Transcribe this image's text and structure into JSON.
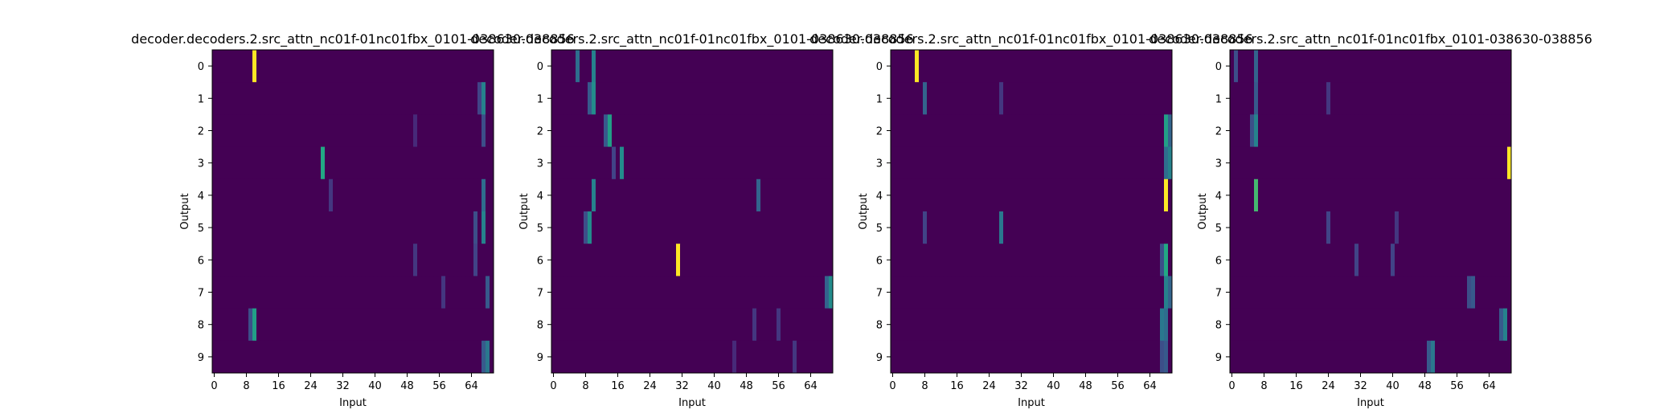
{
  "figure": {
    "background": "#ffffff",
    "colormap": "viridis"
  },
  "chart_data": [
    {
      "type": "heatmap",
      "title": "decoder.decoders.2.src_attn_nc01f-01nc01fbx_0101-038630-038856",
      "xlabel": "Input",
      "ylabel": "Output",
      "x_ticks": [
        "0",
        "8",
        "16",
        "24",
        "32",
        "40",
        "48",
        "56",
        "64"
      ],
      "y_ticks": [
        "0",
        "1",
        "2",
        "3",
        "4",
        "5",
        "6",
        "7",
        "8",
        "9"
      ],
      "n_cols": 70,
      "n_rows": 10,
      "peaks": [
        {
          "row": 0,
          "col": 10,
          "value": 1.0
        },
        {
          "row": 1,
          "col": 67,
          "value": 0.55
        },
        {
          "row": 1,
          "col": 66,
          "value": 0.25
        },
        {
          "row": 2,
          "col": 67,
          "value": 0.3
        },
        {
          "row": 2,
          "col": 50,
          "value": 0.15
        },
        {
          "row": 3,
          "col": 27,
          "value": 0.75
        },
        {
          "row": 4,
          "col": 67,
          "value": 0.45
        },
        {
          "row": 4,
          "col": 29,
          "value": 0.2
        },
        {
          "row": 5,
          "col": 67,
          "value": 0.55
        },
        {
          "row": 5,
          "col": 65,
          "value": 0.3
        },
        {
          "row": 6,
          "col": 65,
          "value": 0.25
        },
        {
          "row": 6,
          "col": 50,
          "value": 0.2
        },
        {
          "row": 7,
          "col": 68,
          "value": 0.35
        },
        {
          "row": 7,
          "col": 57,
          "value": 0.2
        },
        {
          "row": 8,
          "col": 10,
          "value": 0.7
        },
        {
          "row": 8,
          "col": 9,
          "value": 0.3
        },
        {
          "row": 9,
          "col": 68,
          "value": 0.5
        },
        {
          "row": 9,
          "col": 67,
          "value": 0.35
        }
      ]
    },
    {
      "type": "heatmap",
      "title": "decoder.decoders.2.src_attn_nc01f-01nc01fbx_0101-038630-038856",
      "xlabel": "Input",
      "ylabel": "Output",
      "x_ticks": [
        "0",
        "8",
        "16",
        "24",
        "32",
        "40",
        "48",
        "56",
        "64"
      ],
      "y_ticks": [
        "0",
        "1",
        "2",
        "3",
        "4",
        "5",
        "6",
        "7",
        "8",
        "9"
      ],
      "n_cols": 70,
      "n_rows": 10,
      "peaks": [
        {
          "row": 0,
          "col": 6,
          "value": 0.45
        },
        {
          "row": 0,
          "col": 10,
          "value": 0.55
        },
        {
          "row": 1,
          "col": 10,
          "value": 0.6
        },
        {
          "row": 1,
          "col": 9,
          "value": 0.35
        },
        {
          "row": 2,
          "col": 14,
          "value": 0.7
        },
        {
          "row": 2,
          "col": 13,
          "value": 0.35
        },
        {
          "row": 3,
          "col": 17,
          "value": 0.6
        },
        {
          "row": 3,
          "col": 15,
          "value": 0.25
        },
        {
          "row": 4,
          "col": 10,
          "value": 0.55
        },
        {
          "row": 4,
          "col": 51,
          "value": 0.4
        },
        {
          "row": 5,
          "col": 9,
          "value": 0.6
        },
        {
          "row": 5,
          "col": 8,
          "value": 0.3
        },
        {
          "row": 6,
          "col": 31,
          "value": 1.0
        },
        {
          "row": 7,
          "col": 69,
          "value": 0.6
        },
        {
          "row": 7,
          "col": 68,
          "value": 0.4
        },
        {
          "row": 8,
          "col": 50,
          "value": 0.2
        },
        {
          "row": 8,
          "col": 56,
          "value": 0.2
        },
        {
          "row": 9,
          "col": 60,
          "value": 0.2
        },
        {
          "row": 9,
          "col": 45,
          "value": 0.15
        }
      ]
    },
    {
      "type": "heatmap",
      "title": "decoder.decoders.2.src_attn_nc01f-01nc01fbx_0101-038630-038856",
      "xlabel": "Input",
      "ylabel": "Output",
      "x_ticks": [
        "0",
        "8",
        "16",
        "24",
        "32",
        "40",
        "48",
        "56",
        "64"
      ],
      "y_ticks": [
        "0",
        "1",
        "2",
        "3",
        "4",
        "5",
        "6",
        "7",
        "8",
        "9"
      ],
      "n_cols": 70,
      "n_rows": 10,
      "peaks": [
        {
          "row": 0,
          "col": 6,
          "value": 1.0
        },
        {
          "row": 1,
          "col": 8,
          "value": 0.4
        },
        {
          "row": 1,
          "col": 27,
          "value": 0.2
        },
        {
          "row": 2,
          "col": 68,
          "value": 0.7
        },
        {
          "row": 2,
          "col": 69,
          "value": 0.4
        },
        {
          "row": 3,
          "col": 69,
          "value": 0.55
        },
        {
          "row": 3,
          "col": 68,
          "value": 0.45
        },
        {
          "row": 4,
          "col": 68,
          "value": 1.0
        },
        {
          "row": 5,
          "col": 27,
          "value": 0.5
        },
        {
          "row": 5,
          "col": 8,
          "value": 0.25
        },
        {
          "row": 6,
          "col": 68,
          "value": 0.75
        },
        {
          "row": 6,
          "col": 67,
          "value": 0.3
        },
        {
          "row": 7,
          "col": 68,
          "value": 0.55
        },
        {
          "row": 7,
          "col": 69,
          "value": 0.4
        },
        {
          "row": 8,
          "col": 67,
          "value": 0.5
        },
        {
          "row": 8,
          "col": 68,
          "value": 0.45
        },
        {
          "row": 9,
          "col": 67,
          "value": 0.3
        },
        {
          "row": 9,
          "col": 68,
          "value": 0.35
        }
      ]
    },
    {
      "type": "heatmap",
      "title": "decoder.decoders.2.src_attn_nc01f-01nc01fbx_0101-038630-038856",
      "xlabel": "Input",
      "ylabel": "Output",
      "x_ticks": [
        "0",
        "8",
        "16",
        "24",
        "32",
        "40",
        "48",
        "56",
        "64"
      ],
      "y_ticks": [
        "0",
        "1",
        "2",
        "3",
        "4",
        "5",
        "6",
        "7",
        "8",
        "9"
      ],
      "n_cols": 70,
      "n_rows": 10,
      "peaks": [
        {
          "row": 0,
          "col": 6,
          "value": 0.4
        },
        {
          "row": 0,
          "col": 1,
          "value": 0.3
        },
        {
          "row": 1,
          "col": 6,
          "value": 0.35
        },
        {
          "row": 1,
          "col": 24,
          "value": 0.2
        },
        {
          "row": 2,
          "col": 6,
          "value": 0.55
        },
        {
          "row": 2,
          "col": 5,
          "value": 0.3
        },
        {
          "row": 3,
          "col": 69,
          "value": 1.0
        },
        {
          "row": 4,
          "col": 6,
          "value": 0.8
        },
        {
          "row": 5,
          "col": 24,
          "value": 0.25
        },
        {
          "row": 5,
          "col": 41,
          "value": 0.2
        },
        {
          "row": 6,
          "col": 31,
          "value": 0.25
        },
        {
          "row": 6,
          "col": 40,
          "value": 0.25
        },
        {
          "row": 7,
          "col": 60,
          "value": 0.35
        },
        {
          "row": 7,
          "col": 59,
          "value": 0.3
        },
        {
          "row": 8,
          "col": 68,
          "value": 0.55
        },
        {
          "row": 8,
          "col": 67,
          "value": 0.35
        },
        {
          "row": 9,
          "col": 50,
          "value": 0.5
        },
        {
          "row": 9,
          "col": 49,
          "value": 0.35
        }
      ]
    }
  ]
}
